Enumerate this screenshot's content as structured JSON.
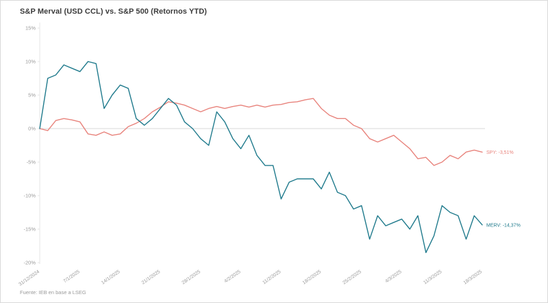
{
  "title": "S&P Merval (USD CCL) vs. S&P 500 (Retornos YTD)",
  "footer": "Fuente: IEB en base a LSEG",
  "colors": {
    "spy_line": "#e8837c",
    "merv_line": "#1f7a8c",
    "zero_gridline": "#d8d8d8",
    "axis_line": "#e5e5e5",
    "tick_text": "#9a9a9a"
  },
  "chart_data": {
    "type": "line",
    "title": "S&P Merval (USD CCL) vs. S&P 500 (Retornos YTD)",
    "xlabel": "",
    "ylabel": "",
    "ylim": [
      -20,
      15
    ],
    "y_ticks": [
      15,
      10,
      5,
      0,
      -5,
      -10,
      -15,
      -20
    ],
    "y_tick_suffix": "%",
    "grid": "horizontal-zero-line-only",
    "legend_position": "line-end-labels",
    "x_tick_labels": [
      "31/12/2024",
      "7/1/2025",
      "14/1/2025",
      "21/1/2025",
      "28/1/2025",
      "4/2/2025",
      "11/2/2025",
      "18/2/2025",
      "25/2/2025",
      "4/3/2025",
      "11/3/2025",
      "18/3/2025"
    ],
    "series": [
      {
        "name": "SPY",
        "end_label": "SPY: -3,51%",
        "color": "#e8837c",
        "values": [
          0,
          -0.3,
          1.2,
          1.5,
          1.3,
          1,
          -0.8,
          -1,
          -0.5,
          -1,
          -0.8,
          0.3,
          0.8,
          1.5,
          2.5,
          3.2,
          4,
          3.8,
          3.5,
          3,
          2.5,
          3,
          3.3,
          3,
          3.3,
          3.5,
          3.2,
          3.5,
          3.2,
          3.5,
          3.6,
          3.9,
          4,
          4.3,
          4.5,
          3,
          2,
          1.5,
          1.5,
          0.5,
          0,
          -1.5,
          -2,
          -1.5,
          -1,
          -2,
          -3,
          -4.5,
          -4.3,
          -5.5,
          -5,
          -4,
          -4.5,
          -3.5,
          -3.2,
          -3.51
        ]
      },
      {
        "name": "MERV",
        "end_label": "MERV: -14,37%",
        "color": "#1f7a8c",
        "values": [
          0,
          7.5,
          8,
          9.5,
          9,
          8.5,
          10,
          9.7,
          3,
          5,
          6.5,
          6,
          1.5,
          0.5,
          1.5,
          3,
          4.5,
          3.5,
          1,
          0,
          -1.5,
          -2.5,
          2.5,
          1,
          -1.5,
          -3,
          -1,
          -4,
          -5.5,
          -5.5,
          -10.5,
          -8,
          -7.5,
          -7.5,
          -7.5,
          -9,
          -6.5,
          -9.5,
          -10,
          -12,
          -11.5,
          -16.5,
          -13,
          -14.5,
          -14,
          -13.5,
          -15,
          -13,
          -18.5,
          -16,
          -11.5,
          -12.5,
          -13,
          -16.5,
          -13,
          -14.37
        ]
      }
    ]
  }
}
